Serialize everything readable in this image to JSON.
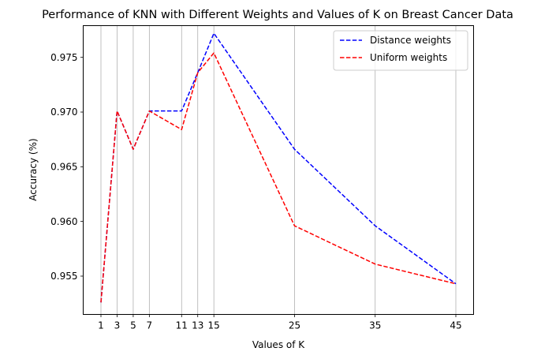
{
  "chart_data": {
    "type": "line",
    "title": "Performance of KNN with Different Weights and Values of K on Breast Cancer Data",
    "xlabel": "Values of K",
    "ylabel": "Accuracy (%)",
    "x": [
      1,
      3,
      5,
      7,
      11,
      13,
      15,
      25,
      35,
      45
    ],
    "x_tick_labels": [
      "1",
      "3",
      "5",
      "7",
      "11",
      "13",
      "15",
      "25",
      "35",
      "45"
    ],
    "y_ticks": [
      0.955,
      0.96,
      0.965,
      0.97,
      0.975
    ],
    "y_tick_labels": [
      "0.955",
      "0.960",
      "0.965",
      "0.970",
      "0.975"
    ],
    "xlim": [
      -1.2,
      47.2
    ],
    "ylim": [
      0.9515,
      0.9779
    ],
    "grid": "vertical at x ticks",
    "legend_position": "top-right",
    "series": [
      {
        "name": "Distance weights",
        "color": "#0000ff",
        "line_style": "dashed",
        "values": [
          0.9526,
          0.9701,
          0.9666,
          0.9701,
          0.9701,
          0.9736,
          0.9772,
          0.9666,
          0.9596,
          0.9543
        ]
      },
      {
        "name": "Uniform weights",
        "color": "#ff0000",
        "line_style": "dashed",
        "values": [
          0.9526,
          0.9701,
          0.9666,
          0.9701,
          0.9684,
          0.9736,
          0.9754,
          0.9596,
          0.9561,
          0.9543
        ]
      }
    ]
  }
}
